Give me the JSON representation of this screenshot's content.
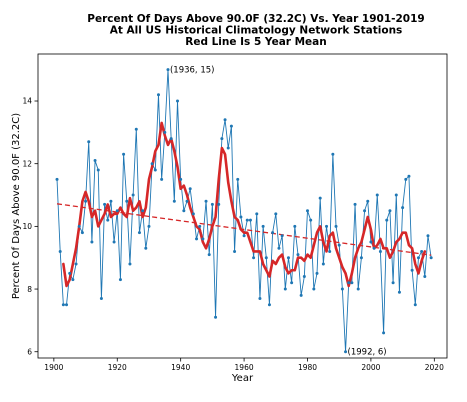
{
  "chart_data": {
    "type": "line",
    "title_lines": [
      "Percent Of Days Above 90.0F (32.2C) Vs. Year 1901-2019",
      "At All US Historical Climatology Network Stations",
      "Red Line Is 5 Year Mean"
    ],
    "xlabel": "Year",
    "ylabel": "Percent Of Days Above 90.0F (32.2C)",
    "xlim": [
      1895,
      2024
    ],
    "ylim": [
      5.8,
      15.5
    ],
    "x_ticks": [
      1900,
      1920,
      1940,
      1960,
      1980,
      2000,
      2020
    ],
    "y_ticks": [
      6,
      8,
      10,
      12,
      14
    ],
    "grid": false,
    "legend": "none",
    "colors": {
      "annual": "#1f77b4",
      "mean": "#d62728",
      "trend": "#d62728"
    },
    "series": [
      {
        "style": "line-with-markers",
        "x": [
          1901,
          1902,
          1903,
          1904,
          1905,
          1906,
          1907,
          1908,
          1909,
          1910,
          1911,
          1912,
          1913,
          1914,
          1915,
          1916,
          1917,
          1918,
          1919,
          1920,
          1921,
          1922,
          1923,
          1924,
          1925,
          1926,
          1927,
          1928,
          1929,
          1930,
          1931,
          1932,
          1933,
          1934,
          1935,
          1936,
          1937,
          1938,
          1939,
          1940,
          1941,
          1942,
          1943,
          1944,
          1945,
          1946,
          1947,
          1948,
          1949,
          1950,
          1951,
          1952,
          1953,
          1954,
          1955,
          1956,
          1957,
          1958,
          1959,
          1960,
          1961,
          1962,
          1963,
          1964,
          1965,
          1966,
          1967,
          1968,
          1969,
          1970,
          1971,
          1972,
          1973,
          1974,
          1975,
          1976,
          1977,
          1978,
          1979,
          1980,
          1981,
          1982,
          1983,
          1984,
          1985,
          1986,
          1987,
          1988,
          1989,
          1990,
          1991,
          1992,
          1993,
          1994,
          1995,
          1996,
          1997,
          1998,
          1999,
          2000,
          2001,
          2002,
          2003,
          2004,
          2005,
          2006,
          2007,
          2008,
          2009,
          2010,
          2011,
          2012,
          2013,
          2014,
          2015,
          2016,
          2017,
          2018,
          2019
        ],
        "y": [
          11.5,
          9.2,
          7.5,
          7.5,
          8.5,
          8.3,
          8.8,
          10.0,
          9.8,
          10.8,
          12.7,
          9.5,
          12.1,
          11.8,
          7.7,
          10.7,
          10.2,
          10.8,
          9.5,
          10.5,
          8.3,
          12.3,
          10.8,
          8.8,
          11.0,
          13.1,
          9.8,
          10.5,
          9.3,
          10.0,
          12.0,
          11.8,
          14.2,
          11.5,
          13.0,
          15.0,
          12.8,
          10.8,
          14.0,
          11.5,
          10.5,
          10.8,
          11.2,
          10.4,
          9.6,
          10.0,
          9.6,
          10.8,
          9.1,
          10.7,
          7.1,
          10.7,
          12.8,
          13.4,
          12.5,
          13.2,
          9.2,
          11.5,
          10.3,
          9.7,
          10.2,
          10.2,
          9.0,
          10.4,
          7.7,
          10.0,
          9.0,
          7.5,
          9.8,
          10.4,
          9.3,
          9.7,
          8.0,
          9.0,
          8.2,
          10.0,
          9.1,
          7.8,
          8.4,
          10.5,
          10.2,
          8.0,
          8.5,
          10.9,
          8.8,
          10.0,
          9.2,
          12.3,
          10.0,
          9.4,
          8.0,
          6.0,
          8.2,
          8.2,
          10.7,
          8.0,
          9.0,
          10.5,
          10.8,
          9.5,
          9.3,
          11.0,
          9.2,
          6.6,
          10.2,
          10.5,
          8.2,
          11.0,
          7.9,
          10.6,
          11.5,
          11.6,
          8.6,
          7.5,
          9.0,
          9.2,
          8.4,
          9.7,
          9.0
        ]
      },
      {
        "style": "line",
        "x": [
          1903,
          1904,
          1905,
          1906,
          1907,
          1908,
          1909,
          1910,
          1911,
          1912,
          1913,
          1914,
          1915,
          1916,
          1917,
          1918,
          1919,
          1920,
          1921,
          1922,
          1923,
          1924,
          1925,
          1926,
          1927,
          1928,
          1929,
          1930,
          1931,
          1932,
          1933,
          1934,
          1935,
          1936,
          1937,
          1938,
          1939,
          1940,
          1941,
          1942,
          1943,
          1944,
          1945,
          1946,
          1947,
          1948,
          1949,
          1950,
          1951,
          1952,
          1953,
          1954,
          1955,
          1956,
          1957,
          1958,
          1959,
          1960,
          1961,
          1962,
          1963,
          1964,
          1965,
          1966,
          1967,
          1968,
          1969,
          1970,
          1971,
          1972,
          1973,
          1974,
          1975,
          1976,
          1977,
          1978,
          1979,
          1980,
          1981,
          1982,
          1983,
          1984,
          1985,
          1986,
          1987,
          1988,
          1989,
          1990,
          1991,
          1992,
          1993,
          1994,
          1995,
          1996,
          1997,
          1998,
          1999,
          2000,
          2001,
          2002,
          2003,
          2004,
          2005,
          2006,
          2007,
          2008,
          2009,
          2010,
          2011,
          2012,
          2013,
          2014,
          2015,
          2016,
          2017
        ],
        "y": [
          8.8,
          8.1,
          8.3,
          8.8,
          9.3,
          10.0,
          10.8,
          11.1,
          10.8,
          10.3,
          10.5,
          10.0,
          10.2,
          10.4,
          10.7,
          10.3,
          10.4,
          10.4,
          10.6,
          10.4,
          10.3,
          10.9,
          10.5,
          10.6,
          10.8,
          10.3,
          10.6,
          11.5,
          11.9,
          12.4,
          12.6,
          13.3,
          12.9,
          12.6,
          12.8,
          12.4,
          11.9,
          11.2,
          11.3,
          11.0,
          10.6,
          10.3,
          10.0,
          9.9,
          9.5,
          9.3,
          9.6,
          10.0,
          10.3,
          11.5,
          12.5,
          12.3,
          11.4,
          10.8,
          10.3,
          10.2,
          9.9,
          9.8,
          9.8,
          9.5,
          9.2,
          9.2,
          9.2,
          8.8,
          8.6,
          8.4,
          8.9,
          8.8,
          9.0,
          9.1,
          8.7,
          8.5,
          8.6,
          8.6,
          9.0,
          9.0,
          8.9,
          9.1,
          9.0,
          9.4,
          9.8,
          10.0,
          9.5,
          9.2,
          9.7,
          9.8,
          9.3,
          9.0,
          8.7,
          8.5,
          8.1,
          8.5,
          9.0,
          9.3,
          9.5,
          9.9,
          10.3,
          9.9,
          9.3,
          9.4,
          9.6,
          9.3,
          9.3,
          9.0,
          9.2,
          9.5,
          9.6,
          9.8,
          9.8,
          9.4,
          9.3,
          8.8,
          8.5,
          8.9,
          9.2
        ]
      },
      {
        "style": "dashed-line",
        "x": [
          1901,
          2019
        ],
        "y": [
          10.72,
          9.08
        ]
      }
    ],
    "annotations": [
      {
        "text": "(1936, 15)",
        "x": 1936,
        "y": 15,
        "anchor": "right"
      },
      {
        "text": "(1992, 6)",
        "x": 1992,
        "y": 6,
        "anchor": "right"
      }
    ]
  }
}
